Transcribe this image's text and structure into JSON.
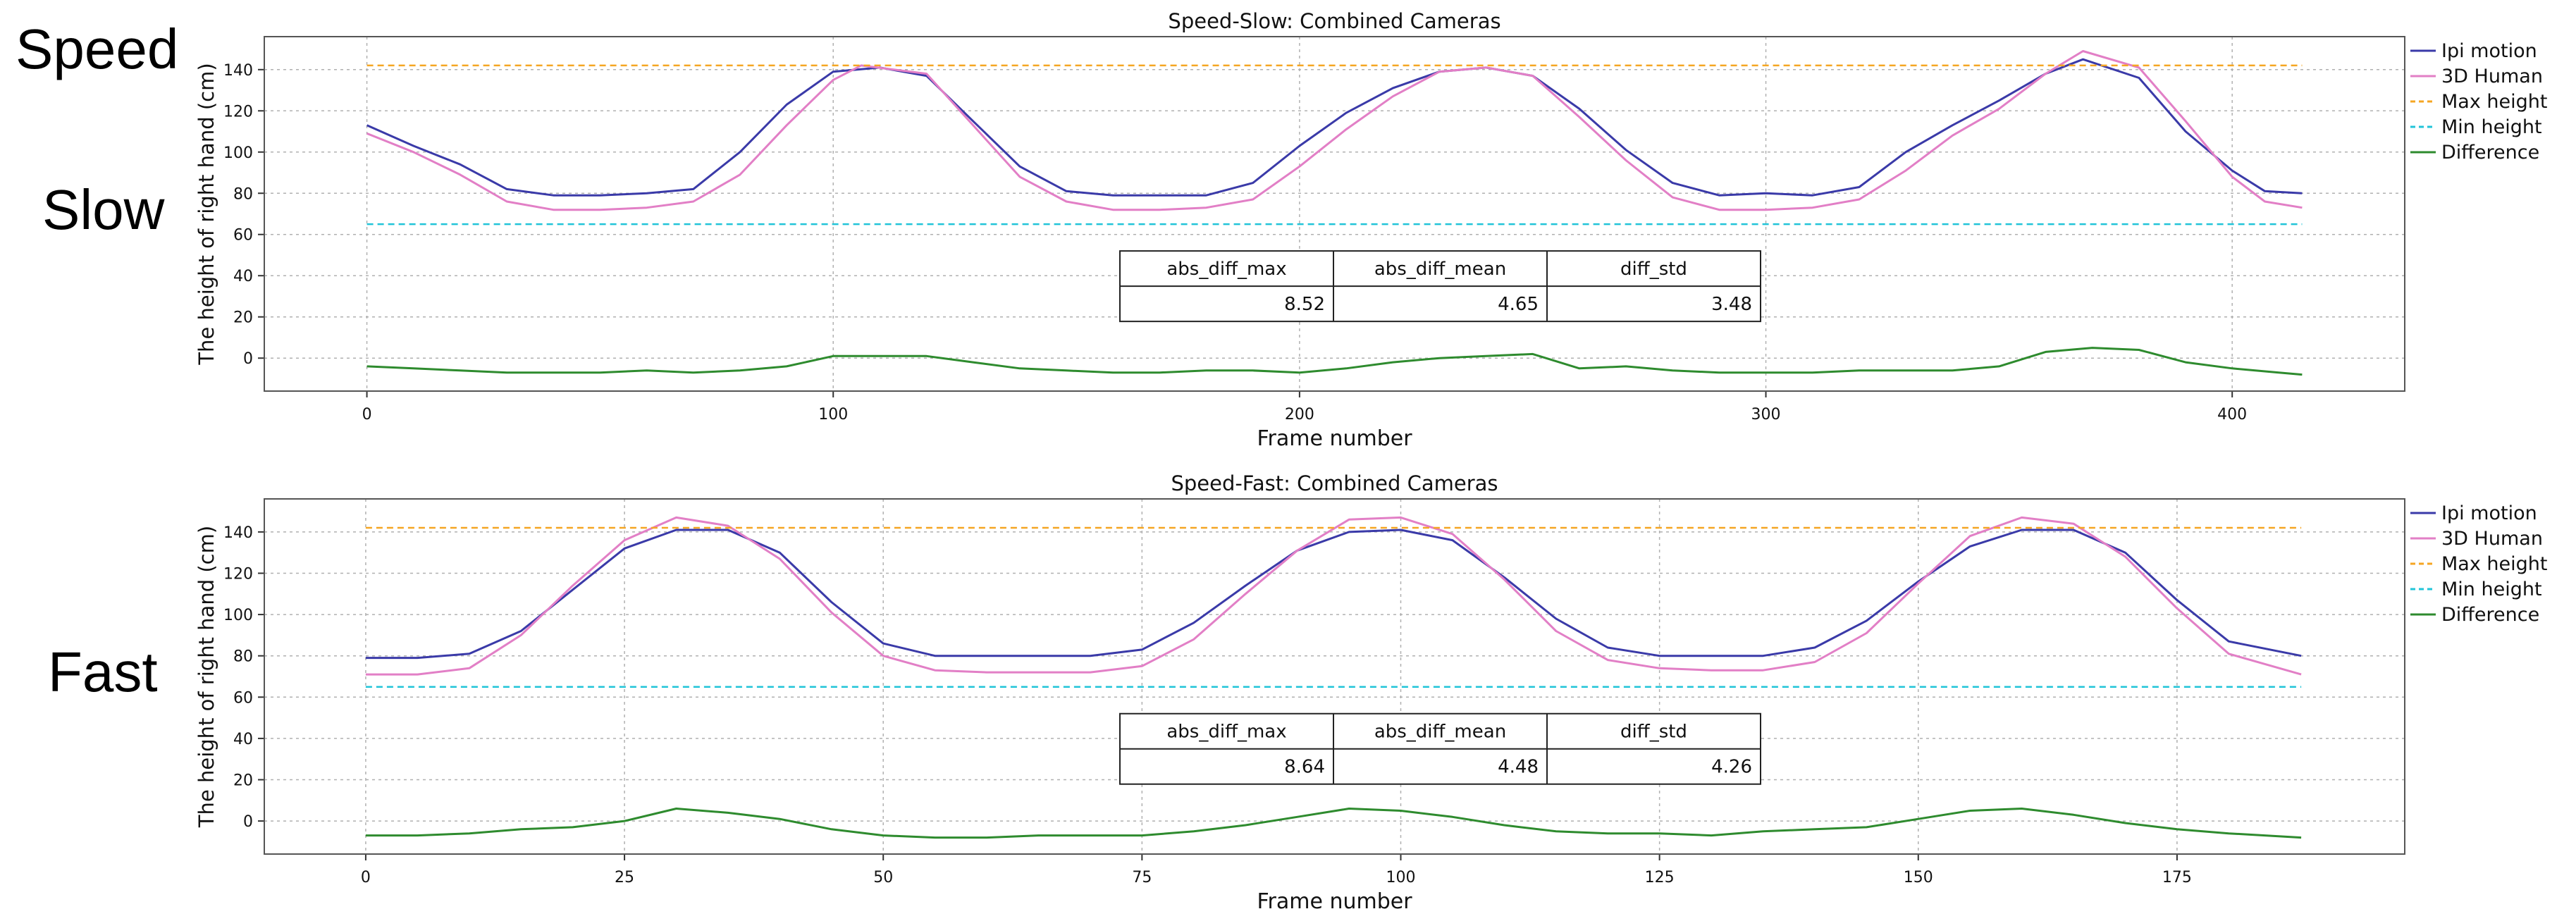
{
  "side_labels": {
    "speed": "Speed",
    "slow": "Slow",
    "fast": "Fast"
  },
  "colors": {
    "ipi": "#3a3aa8",
    "human": "#e27fc6",
    "max": "#f5a623",
    "min": "#22c4d8",
    "diff": "#2e8b2e",
    "grid": "#b0b0b0",
    "axes": "#555555"
  },
  "chart_data": [
    {
      "type": "line",
      "title": "Speed-Slow: Combined Cameras",
      "xlabel": "Frame number",
      "ylabel": "The height of right hand (cm)",
      "xlim": [
        -22,
        437
      ],
      "ylim": [
        -16,
        156
      ],
      "xticks": [
        0,
        100,
        200,
        300,
        400
      ],
      "yticks": [
        0,
        20,
        40,
        60,
        80,
        100,
        120,
        140
      ],
      "grid": true,
      "legend_position": "outside-top-right",
      "legend": [
        "Ipi motion",
        "3D Human",
        "Max height",
        "Min height",
        "Difference"
      ],
      "series": [
        {
          "name": "Ipi motion",
          "style": "solid",
          "x": [
            0,
            10,
            20,
            30,
            40,
            50,
            60,
            70,
            80,
            90,
            100,
            110,
            120,
            130,
            140,
            150,
            160,
            170,
            180,
            190,
            200,
            210,
            220,
            230,
            240,
            250,
            260,
            270,
            280,
            290,
            300,
            310,
            320,
            330,
            340,
            350,
            360,
            368,
            380,
            390,
            400,
            407,
            415
          ],
          "y": [
            113,
            103,
            94,
            82,
            79,
            79,
            80,
            82,
            100,
            123,
            139,
            141,
            137,
            115,
            93,
            81,
            79,
            79,
            79,
            85,
            103,
            119,
            131,
            139,
            141,
            137,
            121,
            101,
            85,
            79,
            80,
            79,
            83,
            100,
            113,
            125,
            138,
            145,
            136,
            110,
            91,
            81,
            80
          ]
        },
        {
          "name": "3D Human",
          "style": "solid",
          "x": [
            0,
            10,
            20,
            30,
            40,
            50,
            60,
            70,
            80,
            90,
            100,
            106,
            120,
            130,
            140,
            150,
            160,
            170,
            180,
            190,
            200,
            210,
            220,
            230,
            240,
            250,
            260,
            270,
            280,
            290,
            300,
            310,
            320,
            330,
            340,
            350,
            360,
            368,
            380,
            390,
            400,
            407,
            415
          ],
          "y": [
            109,
            100,
            89,
            76,
            72,
            72,
            73,
            76,
            89,
            113,
            135,
            142,
            138,
            113,
            88,
            76,
            72,
            72,
            73,
            77,
            93,
            111,
            127,
            139,
            141,
            137,
            117,
            96,
            78,
            72,
            72,
            73,
            77,
            91,
            108,
            121,
            138,
            149,
            141,
            115,
            88,
            76,
            73
          ]
        },
        {
          "name": "Max height",
          "style": "dashed",
          "x": [
            0,
            415
          ],
          "y": [
            142,
            142
          ]
        },
        {
          "name": "Min height",
          "style": "dashed",
          "x": [
            0,
            415
          ],
          "y": [
            65,
            65
          ]
        },
        {
          "name": "Difference",
          "style": "solid",
          "x": [
            0,
            10,
            20,
            30,
            40,
            50,
            60,
            70,
            80,
            90,
            100,
            110,
            120,
            130,
            140,
            150,
            160,
            170,
            180,
            190,
            200,
            210,
            220,
            230,
            240,
            250,
            260,
            270,
            280,
            290,
            300,
            310,
            320,
            330,
            340,
            350,
            360,
            370,
            380,
            390,
            400,
            410,
            415
          ],
          "y": [
            -4,
            -5,
            -6,
            -7,
            -7,
            -7,
            -6,
            -7,
            -6,
            -4,
            1,
            1,
            1,
            -2,
            -5,
            -6,
            -7,
            -7,
            -6,
            -6,
            -7,
            -5,
            -2,
            0,
            1,
            2,
            -5,
            -4,
            -6,
            -7,
            -7,
            -7,
            -6,
            -6,
            -6,
            -4,
            3,
            5,
            4,
            -2,
            -5,
            -7,
            -8
          ]
        }
      ],
      "table": {
        "headers": [
          "abs_diff_max",
          "abs_diff_mean",
          "diff_std"
        ],
        "values": [
          "8.52",
          "4.65",
          "3.48"
        ]
      }
    },
    {
      "type": "line",
      "title": "Speed-Fast: Combined Cameras",
      "xlabel": "Frame number",
      "ylabel": "The height of right hand (cm)",
      "xlim": [
        -9.8,
        197
      ],
      "ylim": [
        -16,
        156
      ],
      "xticks": [
        0,
        25,
        50,
        75,
        100,
        125,
        150,
        175
      ],
      "yticks": [
        0,
        20,
        40,
        60,
        80,
        100,
        120,
        140
      ],
      "grid": true,
      "legend_position": "outside-top-right",
      "legend": [
        "Ipi motion",
        "3D Human",
        "Max height",
        "Min height",
        "Difference"
      ],
      "series": [
        {
          "name": "Ipi motion",
          "style": "solid",
          "x": [
            0,
            5,
            10,
            15,
            20,
            25,
            30,
            35,
            40,
            45,
            50,
            55,
            60,
            65,
            70,
            75,
            80,
            85,
            90,
            95,
            100,
            105,
            110,
            115,
            120,
            125,
            130,
            135,
            140,
            145,
            150,
            155,
            160,
            165,
            170,
            175,
            180,
            187
          ],
          "y": [
            79,
            79,
            81,
            92,
            112,
            132,
            141,
            141,
            130,
            106,
            86,
            80,
            80,
            80,
            80,
            83,
            96,
            114,
            131,
            140,
            141,
            136,
            118,
            98,
            84,
            80,
            80,
            80,
            84,
            97,
            116,
            133,
            141,
            141,
            130,
            107,
            87,
            80
          ]
        },
        {
          "name": "3D Human",
          "style": "solid",
          "x": [
            0,
            5,
            10,
            15,
            20,
            25,
            30,
            35,
            40,
            45,
            50,
            55,
            60,
            65,
            70,
            75,
            80,
            85,
            90,
            95,
            100,
            105,
            110,
            115,
            120,
            125,
            130,
            135,
            140,
            145,
            150,
            155,
            160,
            165,
            170,
            175,
            180,
            187
          ],
          "y": [
            71,
            71,
            74,
            90,
            114,
            136,
            147,
            143,
            127,
            101,
            80,
            73,
            72,
            72,
            72,
            75,
            88,
            110,
            131,
            146,
            147,
            139,
            117,
            92,
            78,
            74,
            73,
            73,
            77,
            91,
            115,
            138,
            147,
            144,
            128,
            103,
            81,
            71
          ]
        },
        {
          "name": "Max height",
          "style": "dashed",
          "x": [
            0,
            187
          ],
          "y": [
            142,
            142
          ]
        },
        {
          "name": "Min height",
          "style": "dashed",
          "x": [
            0,
            187
          ],
          "y": [
            65,
            65
          ]
        },
        {
          "name": "Difference",
          "style": "solid",
          "x": [
            0,
            5,
            10,
            15,
            20,
            25,
            30,
            35,
            40,
            45,
            50,
            55,
            60,
            65,
            70,
            75,
            80,
            85,
            90,
            95,
            100,
            105,
            110,
            115,
            120,
            125,
            130,
            135,
            140,
            145,
            150,
            155,
            160,
            165,
            170,
            175,
            180,
            187
          ],
          "y": [
            -7,
            -7,
            -6,
            -4,
            -3,
            0,
            6,
            4,
            1,
            -4,
            -7,
            -8,
            -8,
            -7,
            -7,
            -7,
            -5,
            -2,
            2,
            6,
            5,
            2,
            -2,
            -5,
            -6,
            -6,
            -7,
            -5,
            -4,
            -3,
            1,
            5,
            6,
            3,
            -1,
            -4,
            -6,
            -8
          ]
        }
      ],
      "table": {
        "headers": [
          "abs_diff_max",
          "abs_diff_mean",
          "diff_std"
        ],
        "values": [
          "8.64",
          "4.48",
          "4.26"
        ]
      }
    }
  ]
}
